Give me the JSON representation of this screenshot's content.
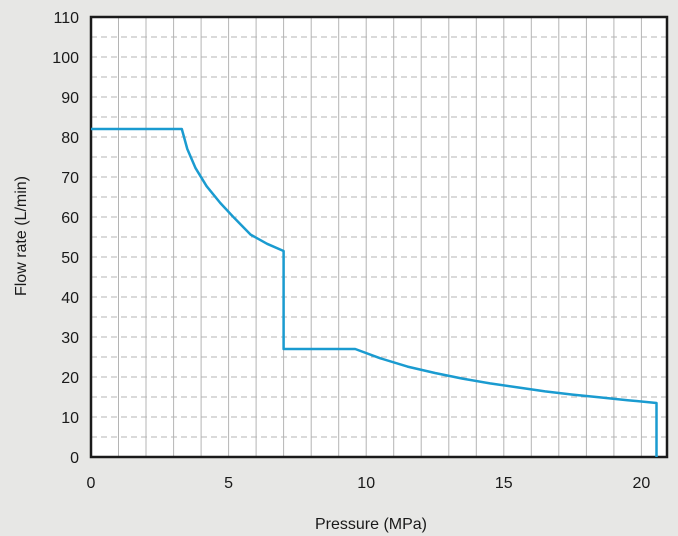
{
  "chart_data": {
    "type": "line",
    "title": "",
    "xlabel": "Pressure (MPa)",
    "ylabel": "Flow rate (L/min)",
    "xlim": [
      0,
      20.93
    ],
    "ylim": [
      0,
      110
    ],
    "x_ticks": [
      0,
      5,
      10,
      15,
      20
    ],
    "x_tick_labels": [
      "0",
      "5",
      "10",
      "15",
      "20"
    ],
    "y_ticks": [
      0,
      10,
      20,
      30,
      40,
      50,
      60,
      70,
      80,
      90,
      100,
      110
    ],
    "y_tick_labels": [
      "0",
      "10",
      "20",
      "30",
      "40",
      "50",
      "60",
      "70",
      "80",
      "90",
      "100",
      "110"
    ],
    "x_minor_gridlines": [
      1,
      2,
      3,
      4,
      5,
      6,
      7,
      8,
      9,
      10,
      11,
      12,
      13,
      14,
      15,
      16,
      17,
      18,
      19,
      20
    ],
    "y_minor_gridlines": [
      5,
      15,
      25,
      35,
      45,
      55,
      65,
      75,
      85,
      95,
      105
    ],
    "grid": true,
    "legend": "none",
    "colors": {
      "line": "#1a9bd0",
      "grid_vertical": "#b4b4b4",
      "grid_horizontal": "#b4b4b4",
      "frame": "#1a1a1a",
      "plot_bg": "#ffffff",
      "page_bg": "#e7e7e5"
    },
    "series": [
      {
        "x": [
          0,
          3.3,
          3.5,
          3.8,
          4.2,
          4.7,
          5.2,
          5.8,
          6.4,
          7.0,
          7.0,
          9.6,
          10.5,
          11.5,
          12.5,
          13.5,
          14.5,
          15.5,
          16.5,
          17.5,
          18.5,
          19.5,
          20.55,
          20.55
        ],
        "y": [
          82,
          82,
          77,
          72.2,
          67.7,
          63.5,
          59.8,
          55.6,
          53.3,
          51.5,
          27,
          27,
          24.7,
          22.6,
          21,
          19.6,
          18.4,
          17.4,
          16.4,
          15.6,
          14.9,
          14.2,
          13.5,
          0
        ]
      }
    ]
  }
}
